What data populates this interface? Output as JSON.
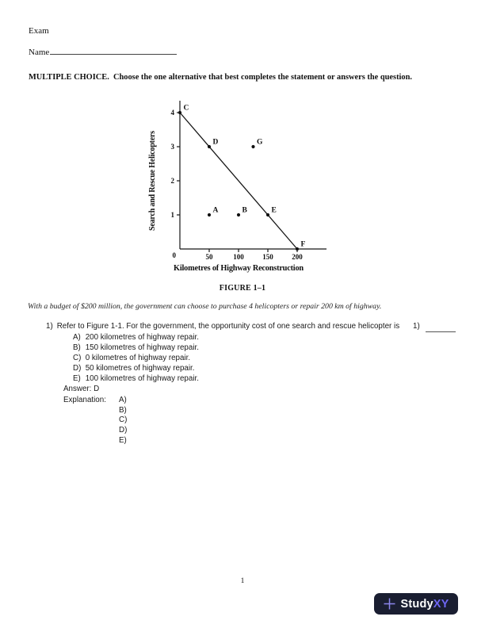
{
  "page": {
    "header_title": "Exam",
    "name_label": "Name",
    "instructions": "MULTIPLE CHOICE.  Choose the one alternative that best completes the statement or answers the question.",
    "page_number": "1"
  },
  "figure": {
    "caption": "FIGURE 1–1",
    "note": "With a budget of $200 million, the government can choose to purchase 4 helicopters or repair 200 km of highway."
  },
  "chart_data": {
    "type": "scatter",
    "title": "",
    "xlabel": "Kilometres of Highway Reconstruction",
    "ylabel": "Search and Rescue Helicopters",
    "xlim": [
      0,
      250
    ],
    "ylim": [
      0,
      4.35
    ],
    "xticks": [
      50,
      100,
      150,
      200
    ],
    "yticks": [
      1,
      2,
      3,
      4
    ],
    "origin_label": "0",
    "grid": false,
    "line": {
      "name": "budget-line",
      "from": [
        0,
        4
      ],
      "to": [
        200,
        0
      ]
    },
    "points": [
      {
        "label": "C",
        "x": 0,
        "y": 4
      },
      {
        "label": "D",
        "x": 50,
        "y": 3
      },
      {
        "label": "G",
        "x": 125,
        "y": 3
      },
      {
        "label": "A",
        "x": 50,
        "y": 1
      },
      {
        "label": "B",
        "x": 100,
        "y": 1
      },
      {
        "label": "E",
        "x": 150,
        "y": 1
      },
      {
        "label": "F",
        "x": 200,
        "y": 0
      }
    ]
  },
  "question": {
    "number": "1)",
    "text": "Refer to Figure 1-1. For the government, the opportunity cost of one search and rescue helicopter is",
    "answer_ref": "1)",
    "options": [
      {
        "label": "A)",
        "text": "200 kilometres of highway repair."
      },
      {
        "label": "B)",
        "text": "150 kilometres of highway repair."
      },
      {
        "label": "C)",
        "text": "0 kilometres of highway repair."
      },
      {
        "label": "D)",
        "text": "50 kilometres of highway repair."
      },
      {
        "label": "E)",
        "text": "100 kilometres of highway repair."
      }
    ],
    "answer_label": "Answer:",
    "answer_value": "D",
    "explanation_label": "Explanation:",
    "explanation_items": [
      "A)",
      "B)",
      "C)",
      "D)",
      "E)"
    ]
  },
  "footer": {
    "plus_icon": "plus",
    "brand_name": "Study",
    "brand_suffix": "XY",
    "badge_bg": "#1a1e31",
    "accent": "#6e66f2",
    "plus_color": "#8d86ec"
  }
}
